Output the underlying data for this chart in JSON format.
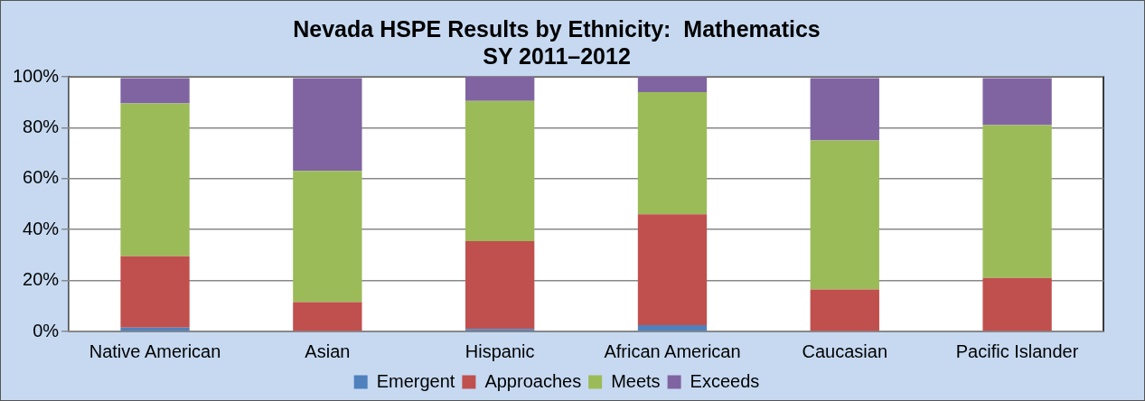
{
  "chart_data": {
    "type": "bar",
    "title": [
      "Nevada HSPE Results by Ethnicity:  Mathematics",
      "SY 2011–2012"
    ],
    "categories": [
      "Native American",
      "Asian",
      "Hispanic",
      "African American",
      "Caucasian",
      "Pacific Islander"
    ],
    "stacked": true,
    "series": [
      {
        "name": "Emergent",
        "color": "#4f81bd",
        "values": [
          1.5,
          null,
          1,
          2.5,
          null,
          null
        ]
      },
      {
        "name": "Approaches",
        "color": "#c0504d",
        "values": [
          28,
          11.5,
          34.5,
          43.5,
          16.5,
          21
        ]
      },
      {
        "name": "Meets",
        "color": "#9bbb59",
        "values": [
          60,
          51.5,
          55,
          48,
          58.5,
          60
        ]
      },
      {
        "name": "Exceeds",
        "color": "#8064a2",
        "values": [
          10,
          36.5,
          9.5,
          6,
          24.5,
          18.5
        ]
      }
    ],
    "ylim": [
      0,
      100
    ],
    "yticks": [
      {
        "value": 0,
        "label": "0%"
      },
      {
        "value": 20,
        "label": "20%"
      },
      {
        "value": 40,
        "label": "40%"
      },
      {
        "value": 60,
        "label": "60%"
      },
      {
        "value": 80,
        "label": "80%"
      },
      {
        "value": 100,
        "label": "100%"
      }
    ],
    "grid": "y",
    "legend": "bottom"
  }
}
